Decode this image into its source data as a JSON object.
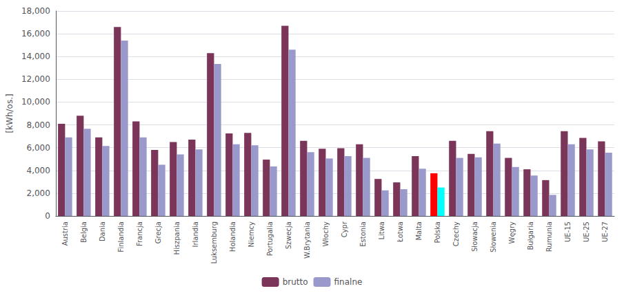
{
  "chart_data": {
    "type": "bar",
    "categories": [
      "Austria",
      "Belgia",
      "Dania",
      "Finlandia",
      "Francja",
      "Grecja",
      "Hiszpania",
      "Irlandia",
      "Luksemburg",
      "Holandia",
      "Niemcy",
      "Portugalia",
      "Szwecja",
      "W.Brytania",
      "Włochy",
      "Cypr",
      "Estonia",
      "Litwa",
      "Łotwa",
      "Malta",
      "Polska",
      "Czechy",
      "Słowacja",
      "Słowenia",
      "Węgry",
      "Bułgaria",
      "Rumunia",
      "UE-15",
      "UE-25",
      "UE-27"
    ],
    "series": [
      {
        "name": "brutto",
        "color": "#7b3558",
        "colors": [
          "#7b3558",
          "#7b3558",
          "#7b3558",
          "#7b3558",
          "#7b3558",
          "#7b3558",
          "#7b3558",
          "#7b3558",
          "#7b3558",
          "#7b3558",
          "#7b3558",
          "#7b3558",
          "#7b3558",
          "#7b3558",
          "#7b3558",
          "#7b3558",
          "#7b3558",
          "#7b3558",
          "#7b3558",
          "#7b3558",
          "#ff0000",
          "#7b3558",
          "#7b3558",
          "#7b3558",
          "#7b3558",
          "#7b3558",
          "#7b3558",
          "#7b3558",
          "#7b3558",
          "#7b3558"
        ],
        "values": [
          8100,
          8800,
          6900,
          16600,
          8300,
          5800,
          6500,
          6700,
          14300,
          7250,
          7300,
          4950,
          16700,
          6600,
          5900,
          5950,
          6300,
          3250,
          2950,
          5250,
          3750,
          6600,
          5450,
          7450,
          5100,
          4100,
          3150,
          7450,
          6850,
          6550
        ]
      },
      {
        "name": "finalne",
        "color": "#9999cc",
        "colors": [
          "#9999cc",
          "#9999cc",
          "#9999cc",
          "#9999cc",
          "#9999cc",
          "#9999cc",
          "#9999cc",
          "#9999cc",
          "#9999cc",
          "#9999cc",
          "#9999cc",
          "#9999cc",
          "#9999cc",
          "#9999cc",
          "#9999cc",
          "#9999cc",
          "#9999cc",
          "#9999cc",
          "#9999cc",
          "#9999cc",
          "#00ffff",
          "#9999cc",
          "#9999cc",
          "#9999cc",
          "#9999cc",
          "#9999cc",
          "#9999cc",
          "#9999cc",
          "#9999cc",
          "#9999cc"
        ],
        "values": [
          6900,
          7650,
          6150,
          15400,
          6900,
          4500,
          5400,
          5850,
          13350,
          6300,
          6200,
          4350,
          14600,
          5600,
          5050,
          5250,
          5100,
          2250,
          2350,
          4150,
          2500,
          5100,
          5150,
          6350,
          4300,
          3550,
          1850,
          6300,
          5850,
          5550
        ]
      }
    ],
    "ylabel": "[kWh/os.]",
    "ylim": [
      0,
      18000
    ],
    "yticks": [
      0,
      2000,
      4000,
      6000,
      8000,
      10000,
      12000,
      14000,
      16000,
      18000
    ],
    "grid": true,
    "legend": "bottom"
  }
}
